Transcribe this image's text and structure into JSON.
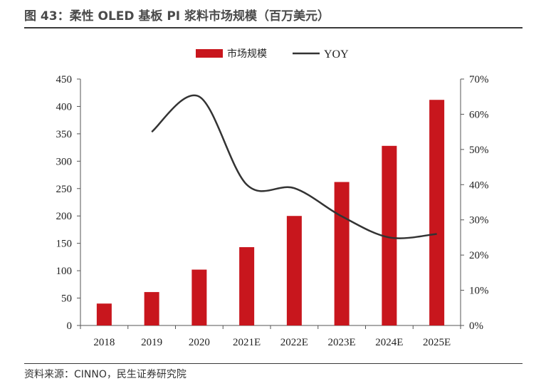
{
  "header": {
    "title": "图 43：柔性 OLED 基板 PI 浆料市场规模（百万美元）"
  },
  "footer": {
    "source": "资料来源：CINNO，民生证券研究院"
  },
  "chart_data": {
    "type": "bar",
    "categories": [
      "2018",
      "2019",
      "2020",
      "2021E",
      "2022E",
      "2023E",
      "2024E",
      "2025E"
    ],
    "series": [
      {
        "name": "市场规模",
        "type": "bar",
        "axis": "left",
        "color": "#c8161d",
        "values": [
          40,
          61,
          102,
          143,
          200,
          262,
          328,
          412
        ]
      },
      {
        "name": "YOY",
        "type": "line",
        "axis": "right",
        "color": "#333333",
        "values": [
          null,
          0.55,
          0.65,
          0.4,
          0.39,
          0.31,
          0.25,
          0.26
        ]
      }
    ],
    "y_left": {
      "ylim": [
        0,
        450
      ],
      "ticks": [
        "0",
        "50",
        "100",
        "150",
        "200",
        "250",
        "300",
        "350",
        "400",
        "450"
      ]
    },
    "y_right": {
      "ylim": [
        0,
        0.7
      ],
      "ticks": [
        "0%",
        "10%",
        "20%",
        "30%",
        "40%",
        "50%",
        "60%",
        "70%"
      ]
    },
    "legend": {
      "position": "top"
    },
    "grid": false
  }
}
